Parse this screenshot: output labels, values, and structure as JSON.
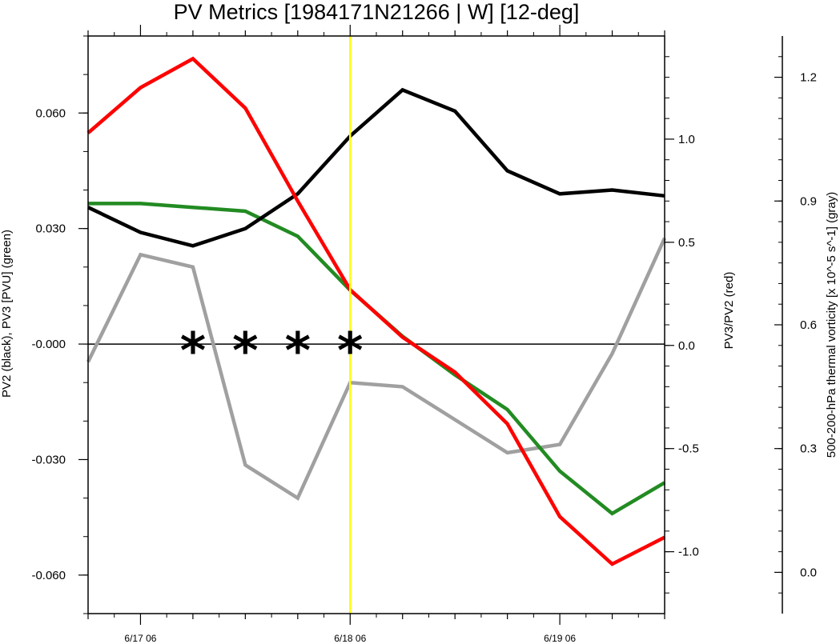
{
  "chart_data": {
    "type": "line",
    "title": "PV Metrics [1984171N21266 | W] [12-deg]",
    "x": [
      "6/17 00",
      "6/17 06",
      "6/17 12",
      "6/17 18",
      "6/18 00",
      "6/18 06",
      "6/18 12",
      "6/18 18",
      "6/19 00",
      "6/19 06",
      "6/19 12",
      "6/19 18"
    ],
    "x_tick_labels": [
      "6/17 06",
      "6/18 06",
      "6/19 06"
    ],
    "left_axis": {
      "label": "PV2 (black), PV3 [PVU] (green)",
      "ylim": [
        -0.07,
        0.08
      ],
      "ticks": [
        0.06,
        0.03,
        -0.0,
        -0.03,
        -0.06
      ],
      "tick_labels": [
        "0.060",
        "0.030",
        "-0.000",
        "-0.030",
        "-0.060"
      ]
    },
    "right_axis": {
      "label": "PV3/PV2 (red)",
      "ylim": [
        -1.3,
        1.5
      ],
      "ticks": [
        1.0,
        0.5,
        0.0,
        -0.5,
        -1.0
      ],
      "tick_labels": [
        "1.0",
        "0.5",
        "0.0",
        "-0.5",
        "-1.0"
      ]
    },
    "far_right_axis": {
      "label": "500-200-hPa thermal vorticity [x 10^-5 s^-1] (gray)",
      "ylim": [
        -0.1,
        1.3
      ],
      "ticks": [
        1.2,
        0.9,
        0.6,
        0.3,
        0.0
      ],
      "tick_labels": [
        "1.2",
        "0.9",
        "0.6",
        "0.3",
        "0.0"
      ]
    },
    "series": [
      {
        "axis": "left",
        "color": "#000000",
        "values": [
          0.0355,
          0.029,
          0.0255,
          0.03,
          0.039,
          0.054,
          0.066,
          0.0605,
          0.045,
          0.039,
          0.04,
          0.0385
        ]
      },
      {
        "axis": "left",
        "color": "#228B22",
        "values": [
          0.0365,
          0.0365,
          0.0355,
          0.0345,
          0.028,
          0.014,
          0.002,
          -0.008,
          -0.017,
          -0.033,
          -0.044,
          -0.036
        ]
      },
      {
        "axis": "right",
        "color": "#FF0000",
        "values": [
          1.03,
          1.25,
          1.39,
          1.15,
          0.7,
          0.27,
          0.04,
          -0.13,
          -0.38,
          -0.83,
          -1.06,
          -0.93
        ]
      },
      {
        "axis": "far_right",
        "color": "#A0A0A0",
        "values": [
          0.51,
          0.77,
          0.74,
          0.26,
          0.18,
          0.46,
          0.45,
          0.37,
          0.29,
          0.31,
          0.53,
          0.81
        ]
      }
    ],
    "zero_line": {
      "axis": "left",
      "value": 0.0
    },
    "vertical_marker": {
      "x_index": 5,
      "color": "#FFFF00"
    },
    "star_markers": {
      "symbol": "*",
      "x_indices": [
        2,
        3,
        4,
        5
      ],
      "y_value": 0.0
    }
  }
}
